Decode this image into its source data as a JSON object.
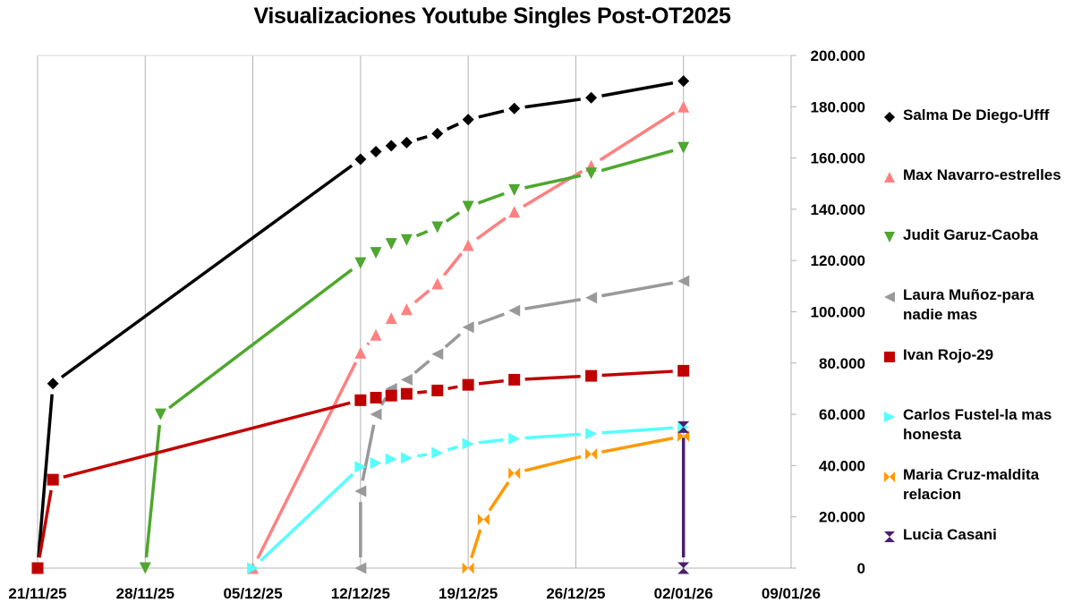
{
  "chart_data": {
    "type": "line",
    "title": "Visualizaciones Youtube Singles Post-OT2025",
    "xlabel": "",
    "ylabel": "",
    "x_axis": {
      "type": "date",
      "range": [
        "2025-11-21",
        "2026-01-09"
      ],
      "ticks": [
        "21/11/25",
        "28/11/25",
        "05/12/25",
        "12/12/25",
        "19/12/25",
        "26/12/25",
        "02/01/26",
        "09/01/26"
      ]
    },
    "y_axis": {
      "position": "right",
      "range": [
        0,
        200000
      ],
      "ticks": [
        "0",
        "20.000",
        "40.000",
        "60.000",
        "80.000",
        "100.000",
        "120.000",
        "140.000",
        "160.000",
        "180.000",
        "200.000"
      ]
    },
    "grid": "vertical",
    "legend_position": "right",
    "series": [
      {
        "name": "Salma De Diego-Ufff",
        "color": "#000000",
        "marker": "diamond",
        "points": [
          [
            "2025-11-21",
            0
          ],
          [
            "2025-11-22",
            72000
          ],
          [
            "2025-12-12",
            159500
          ],
          [
            "2025-12-13",
            162500
          ],
          [
            "2025-12-14",
            164800
          ],
          [
            "2025-12-15",
            166000
          ],
          [
            "2025-12-17",
            169500
          ],
          [
            "2025-12-19",
            175000
          ],
          [
            "2025-12-22",
            179300
          ],
          [
            "2025-12-27",
            183500
          ],
          [
            "2026-01-02",
            190000
          ]
        ]
      },
      {
        "name": "Max Navarro-estrelles",
        "color": "#ff8080",
        "marker": "triangle-up",
        "points": [
          [
            "2025-12-05",
            0
          ],
          [
            "2025-12-12",
            84000
          ],
          [
            "2025-12-13",
            91000
          ],
          [
            "2025-12-14",
            97500
          ],
          [
            "2025-12-15",
            101000
          ],
          [
            "2025-12-17",
            111000
          ],
          [
            "2025-12-19",
            126000
          ],
          [
            "2025-12-22",
            139000
          ],
          [
            "2025-12-27",
            157000
          ],
          [
            "2026-01-02",
            180000
          ]
        ]
      },
      {
        "name": "Judit Garuz-Caoba",
        "color": "#4ea72e",
        "marker": "triangle-down",
        "points": [
          [
            "2025-11-28",
            0
          ],
          [
            "2025-11-29",
            60000
          ],
          [
            "2025-12-12",
            119000
          ],
          [
            "2025-12-13",
            123000
          ],
          [
            "2025-12-14",
            126500
          ],
          [
            "2025-12-15",
            128000
          ],
          [
            "2025-12-17",
            133000
          ],
          [
            "2025-12-19",
            141000
          ],
          [
            "2025-12-22",
            147500
          ],
          [
            "2025-12-27",
            154000
          ],
          [
            "2026-01-02",
            164000
          ]
        ]
      },
      {
        "name": "Laura Muñoz-para nadie mas",
        "color": "#999999",
        "marker": "triangle-left",
        "points": [
          [
            "2025-12-12",
            0
          ],
          [
            "2025-12-12",
            30000
          ],
          [
            "2025-12-13",
            60000
          ],
          [
            "2025-12-14",
            70000
          ],
          [
            "2025-12-15",
            73500
          ],
          [
            "2025-12-17",
            83500
          ],
          [
            "2025-12-19",
            94000
          ],
          [
            "2025-12-22",
            100500
          ],
          [
            "2025-12-27",
            105500
          ],
          [
            "2026-01-02",
            112000
          ]
        ]
      },
      {
        "name": "Ivan Rojo-29",
        "color": "#c00000",
        "marker": "square",
        "points": [
          [
            "2025-11-21",
            0
          ],
          [
            "2025-11-22",
            34500
          ],
          [
            "2025-12-12",
            65500
          ],
          [
            "2025-12-13",
            66500
          ],
          [
            "2025-12-14",
            67300
          ],
          [
            "2025-12-15",
            68000
          ],
          [
            "2025-12-17",
            69300
          ],
          [
            "2025-12-19",
            71500
          ],
          [
            "2025-12-22",
            73500
          ],
          [
            "2025-12-27",
            75000
          ],
          [
            "2026-01-02",
            77000
          ]
        ]
      },
      {
        "name": "Carlos Fustel-la mas honesta",
        "color": "#55ffff",
        "marker": "triangle-right",
        "points": [
          [
            "2025-12-05",
            0
          ],
          [
            "2025-12-12",
            39500
          ],
          [
            "2025-12-13",
            41000
          ],
          [
            "2025-12-14",
            42500
          ],
          [
            "2025-12-15",
            43000
          ],
          [
            "2025-12-17",
            45000
          ],
          [
            "2025-12-19",
            48500
          ],
          [
            "2025-12-22",
            50500
          ],
          [
            "2025-12-27",
            52500
          ],
          [
            "2026-01-02",
            55000
          ]
        ]
      },
      {
        "name": "Maria Cruz-maldita relacion",
        "color": "#ff9900",
        "marker": "bowtie",
        "points": [
          [
            "2025-12-19",
            0
          ],
          [
            "2025-12-20",
            19000
          ],
          [
            "2025-12-22",
            37000
          ],
          [
            "2025-12-27",
            44500
          ],
          [
            "2026-01-02",
            51500
          ]
        ]
      },
      {
        "name": "Lucia Casani",
        "color": "#4b1f6f",
        "marker": "hourglass",
        "points": [
          [
            "2026-01-02",
            0
          ],
          [
            "2026-01-02",
            55000
          ]
        ]
      }
    ]
  }
}
